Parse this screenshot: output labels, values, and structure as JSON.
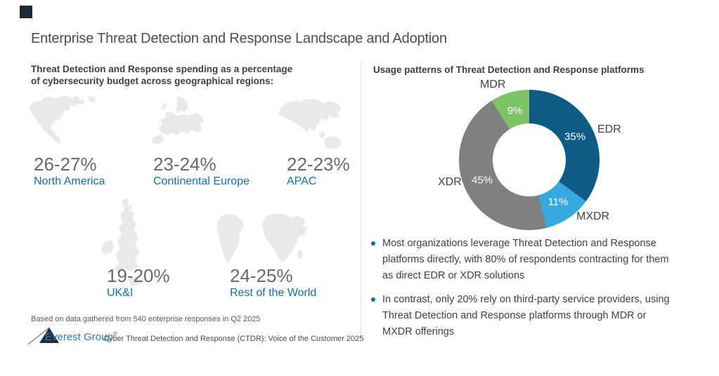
{
  "slide": {
    "title": "Enterprise Threat Detection and Response Landscape and Adoption",
    "accent_color": "#1c2a35"
  },
  "left_panel": {
    "heading_line1": "Threat Detection and Response spending as a percentage",
    "heading_line2": "of cybersecurity budget across geographical regions:",
    "footnote": "Based on data gathered from 540 enterprise responses in Q2 2025"
  },
  "right_panel": {
    "heading": "Usage patterns of Threat Detection and Response platforms",
    "bullets": [
      {
        "lines": [
          "Most organizations leverage Threat Detection and Response",
          "platforms directly, with 80% of respondents contracting for them",
          "as direct EDR or XDR solutions"
        ]
      },
      {
        "lines": [
          "In contrast, only 20% rely on third-party service providers, using",
          "Threat Detection and Response platforms through MDR or",
          "MXDR offerings"
        ]
      }
    ]
  },
  "chart_data": [
    {
      "type": "pie",
      "subtype": "donut",
      "title": "Usage patterns of Threat Detection and Response platforms",
      "categories": [
        "EDR",
        "MXDR",
        "XDR",
        "MDR"
      ],
      "values": [
        35,
        11,
        45,
        9
      ],
      "unit": "%",
      "colors": [
        "#0e5b86",
        "#36a9e1",
        "#808080",
        "#7cc466"
      ],
      "start_angle_deg": 0,
      "direction": "clockwise",
      "value_labels": [
        "35%",
        "11%",
        "45%",
        "9%"
      ],
      "legend_position": "labels-outside"
    },
    {
      "type": "table",
      "title": "Threat Detection and Response spending as a percentage of cybersecurity budget across geographical regions",
      "categories": [
        "North America",
        "Continental Europe",
        "APAC",
        "UK&I",
        "Rest of the World"
      ],
      "values": [
        "26-27%",
        "23-24%",
        "22-23%",
        "19-20%",
        "24-25%"
      ]
    }
  ],
  "footer": {
    "brand": "Everest Group",
    "reg_mark": "®",
    "brand_color": "#2e7db3",
    "report": "Cyber Threat Detection and Response (CTDR): Voice of the Customer 2025"
  }
}
